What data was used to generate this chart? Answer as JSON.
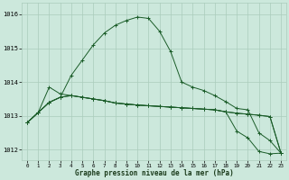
{
  "title": "Graphe pression niveau de la mer (hPa)",
  "bg_color": "#cce8dc",
  "grid_color": "#aaccbb",
  "line_color": "#1a5c28",
  "x_ticks": [
    0,
    1,
    2,
    3,
    4,
    5,
    6,
    7,
    8,
    9,
    10,
    11,
    12,
    13,
    14,
    15,
    16,
    17,
    18,
    19,
    20,
    21,
    22,
    23
  ],
  "ylim": [
    1011.7,
    1016.35
  ],
  "yticks": [
    1012,
    1013,
    1014,
    1015,
    1016
  ],
  "series": [
    [
      1012.8,
      1013.1,
      1013.4,
      1013.55,
      1014.2,
      1014.65,
      1015.1,
      1015.45,
      1015.68,
      1015.82,
      1015.92,
      1015.88,
      1015.5,
      1014.9,
      1014.0,
      1013.85,
      1013.75,
      1013.6,
      1013.42,
      1013.22,
      1013.18,
      1012.5,
      1012.27,
      1011.9
    ],
    [
      1012.8,
      1013.1,
      1013.4,
      1013.55,
      1013.6,
      1013.55,
      1013.5,
      1013.45,
      1013.38,
      1013.35,
      1013.32,
      1013.3,
      1013.28,
      1013.26,
      1013.24,
      1013.22,
      1013.2,
      1013.18,
      1013.12,
      1013.08,
      1013.05,
      1013.02,
      1012.98,
      1011.9
    ],
    [
      1012.8,
      1013.1,
      1013.4,
      1013.55,
      1013.6,
      1013.55,
      1013.5,
      1013.45,
      1013.38,
      1013.35,
      1013.32,
      1013.3,
      1013.28,
      1013.26,
      1013.24,
      1013.22,
      1013.2,
      1013.18,
      1013.12,
      1012.55,
      1012.35,
      1011.95,
      1011.88,
      1011.9
    ],
    [
      1012.8,
      1013.1,
      1013.85,
      1013.65,
      1013.6,
      1013.55,
      1013.5,
      1013.45,
      1013.38,
      1013.35,
      1013.32,
      1013.3,
      1013.28,
      1013.26,
      1013.24,
      1013.22,
      1013.2,
      1013.18,
      1013.12,
      1013.08,
      1013.05,
      1013.02,
      1012.98,
      1011.9
    ]
  ]
}
